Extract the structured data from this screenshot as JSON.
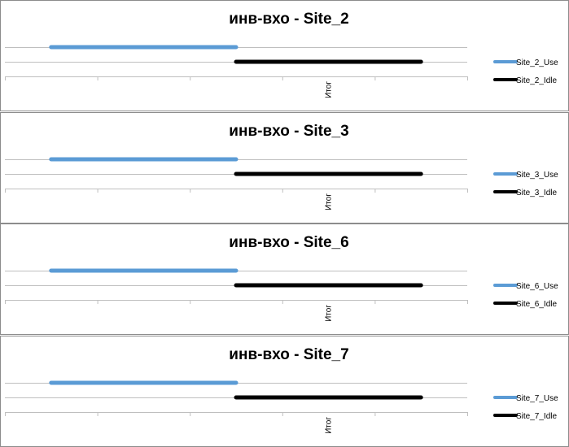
{
  "chart_data": [
    {
      "type": "bar",
      "orientation": "horizontal-floating",
      "title": "инв-вхо - Site_2",
      "categories": [
        "Итог"
      ],
      "xlim": [
        0,
        1
      ],
      "grid": true,
      "legend_position": "right",
      "series": [
        {
          "name": "Site_2_Use",
          "color": "#5b9bd5",
          "start": 0.1,
          "end": 0.5
        },
        {
          "name": "Site_2_Idle",
          "color": "#000000",
          "start": 0.5,
          "end": 0.9
        }
      ]
    },
    {
      "type": "bar",
      "orientation": "horizontal-floating",
      "title": "инв-вхо - Site_3",
      "categories": [
        "Итог"
      ],
      "xlim": [
        0,
        1
      ],
      "grid": true,
      "legend_position": "right",
      "series": [
        {
          "name": "Site_3_Use",
          "color": "#5b9bd5",
          "start": 0.1,
          "end": 0.5
        },
        {
          "name": "Site_3_Idle",
          "color": "#000000",
          "start": 0.5,
          "end": 0.9
        }
      ]
    },
    {
      "type": "bar",
      "orientation": "horizontal-floating",
      "title": "инв-вхо - Site_6",
      "categories": [
        "Итог"
      ],
      "xlim": [
        0,
        1
      ],
      "grid": true,
      "legend_position": "right",
      "series": [
        {
          "name": "Site_6_Use",
          "color": "#5b9bd5",
          "start": 0.1,
          "end": 0.5
        },
        {
          "name": "Site_6_Idle",
          "color": "#000000",
          "start": 0.5,
          "end": 0.9
        }
      ]
    },
    {
      "type": "bar",
      "orientation": "horizontal-floating",
      "title": "инв-вхо - Site_7",
      "categories": [
        "Итог"
      ],
      "xlim": [
        0,
        1
      ],
      "grid": true,
      "legend_position": "right",
      "series": [
        {
          "name": "Site_7_Use",
          "color": "#5b9bd5",
          "start": 0.1,
          "end": 0.5
        },
        {
          "name": "Site_7_Idle",
          "color": "#000000",
          "start": 0.5,
          "end": 0.9
        }
      ]
    }
  ]
}
